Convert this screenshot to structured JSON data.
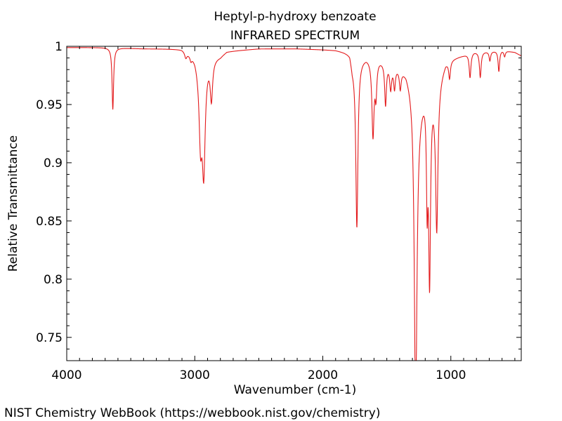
{
  "chart_data": {
    "type": "line",
    "title": "Heptyl-p-hydroxy benzoate",
    "subtitle": "INFRARED SPECTRUM",
    "xlabel": "Wavenumber (cm-1)",
    "ylabel": "Relative Transmittance",
    "xlim": [
      4000,
      450
    ],
    "ylim": [
      0.73,
      1.0
    ],
    "x_reversed": true,
    "grid": false,
    "x_ticks": [
      4000,
      3000,
      2000,
      1000
    ],
    "x_tick_labels": [
      "4000",
      "3000",
      "2000",
      "1000"
    ],
    "y_ticks": [
      0.75,
      0.8,
      0.85,
      0.9,
      0.95,
      1.0
    ],
    "y_tick_labels": [
      "0.75",
      "0.8",
      "0.85",
      "0.9",
      "0.95",
      "1"
    ],
    "line_color": "#e31a1c",
    "baseline": [
      [
        4000,
        0.999
      ],
      [
        3700,
        0.999
      ],
      [
        3400,
        0.998
      ],
      [
        3100,
        0.998
      ],
      [
        3060,
        0.996
      ],
      [
        3000,
        0.993
      ],
      [
        2980,
        0.99
      ],
      [
        2800,
        0.992
      ],
      [
        2750,
        0.996
      ],
      [
        2500,
        0.998
      ],
      [
        2200,
        0.998
      ],
      [
        1900,
        0.997
      ],
      [
        1790,
        0.995
      ],
      [
        1770,
        0.985
      ],
      [
        1710,
        0.99
      ],
      [
        1660,
        0.992
      ],
      [
        1560,
        0.99
      ],
      [
        1450,
        0.985
      ],
      [
        1350,
        0.98
      ],
      [
        1300,
        0.968
      ],
      [
        1260,
        0.945
      ],
      [
        1220,
        0.96
      ],
      [
        1180,
        0.975
      ],
      [
        1130,
        0.968
      ],
      [
        1080,
        0.978
      ],
      [
        1040,
        0.988
      ],
      [
        1000,
        0.99
      ],
      [
        900,
        0.993
      ],
      [
        820,
        0.996
      ],
      [
        700,
        0.996
      ],
      [
        600,
        0.997
      ],
      [
        500,
        0.995
      ],
      [
        450,
        0.992
      ]
    ],
    "peaks": [
      {
        "x": 3640,
        "y": 0.945,
        "w": 7
      },
      {
        "x": 3070,
        "y": 0.993,
        "w": 10
      },
      {
        "x": 3030,
        "y": 0.994,
        "w": 8
      },
      {
        "x": 2955,
        "y": 0.933,
        "w": 14
      },
      {
        "x": 2930,
        "y": 0.907,
        "w": 14
      },
      {
        "x": 2870,
        "y": 0.964,
        "w": 11
      },
      {
        "x": 1734,
        "y": 0.855,
        "w": 10
      },
      {
        "x": 1608,
        "y": 0.932,
        "w": 10
      },
      {
        "x": 1585,
        "y": 0.97,
        "w": 8
      },
      {
        "x": 1510,
        "y": 0.962,
        "w": 8
      },
      {
        "x": 1470,
        "y": 0.978,
        "w": 9
      },
      {
        "x": 1440,
        "y": 0.98,
        "w": 8
      },
      {
        "x": 1395,
        "y": 0.982,
        "w": 8
      },
      {
        "x": 1275,
        "y": 0.73,
        "w": 12
      },
      {
        "x": 1185,
        "y": 0.907,
        "w": 7
      },
      {
        "x": 1166,
        "y": 0.832,
        "w": 9
      },
      {
        "x": 1110,
        "y": 0.872,
        "w": 11
      },
      {
        "x": 1010,
        "y": 0.983,
        "w": 8
      },
      {
        "x": 850,
        "y": 0.977,
        "w": 8
      },
      {
        "x": 770,
        "y": 0.976,
        "w": 8
      },
      {
        "x": 695,
        "y": 0.99,
        "w": 7
      },
      {
        "x": 625,
        "y": 0.98,
        "w": 7
      },
      {
        "x": 580,
        "y": 0.993,
        "w": 7
      }
    ]
  },
  "footer": {
    "credit": "NIST Chemistry WebBook (https://webbook.nist.gov/chemistry)"
  }
}
